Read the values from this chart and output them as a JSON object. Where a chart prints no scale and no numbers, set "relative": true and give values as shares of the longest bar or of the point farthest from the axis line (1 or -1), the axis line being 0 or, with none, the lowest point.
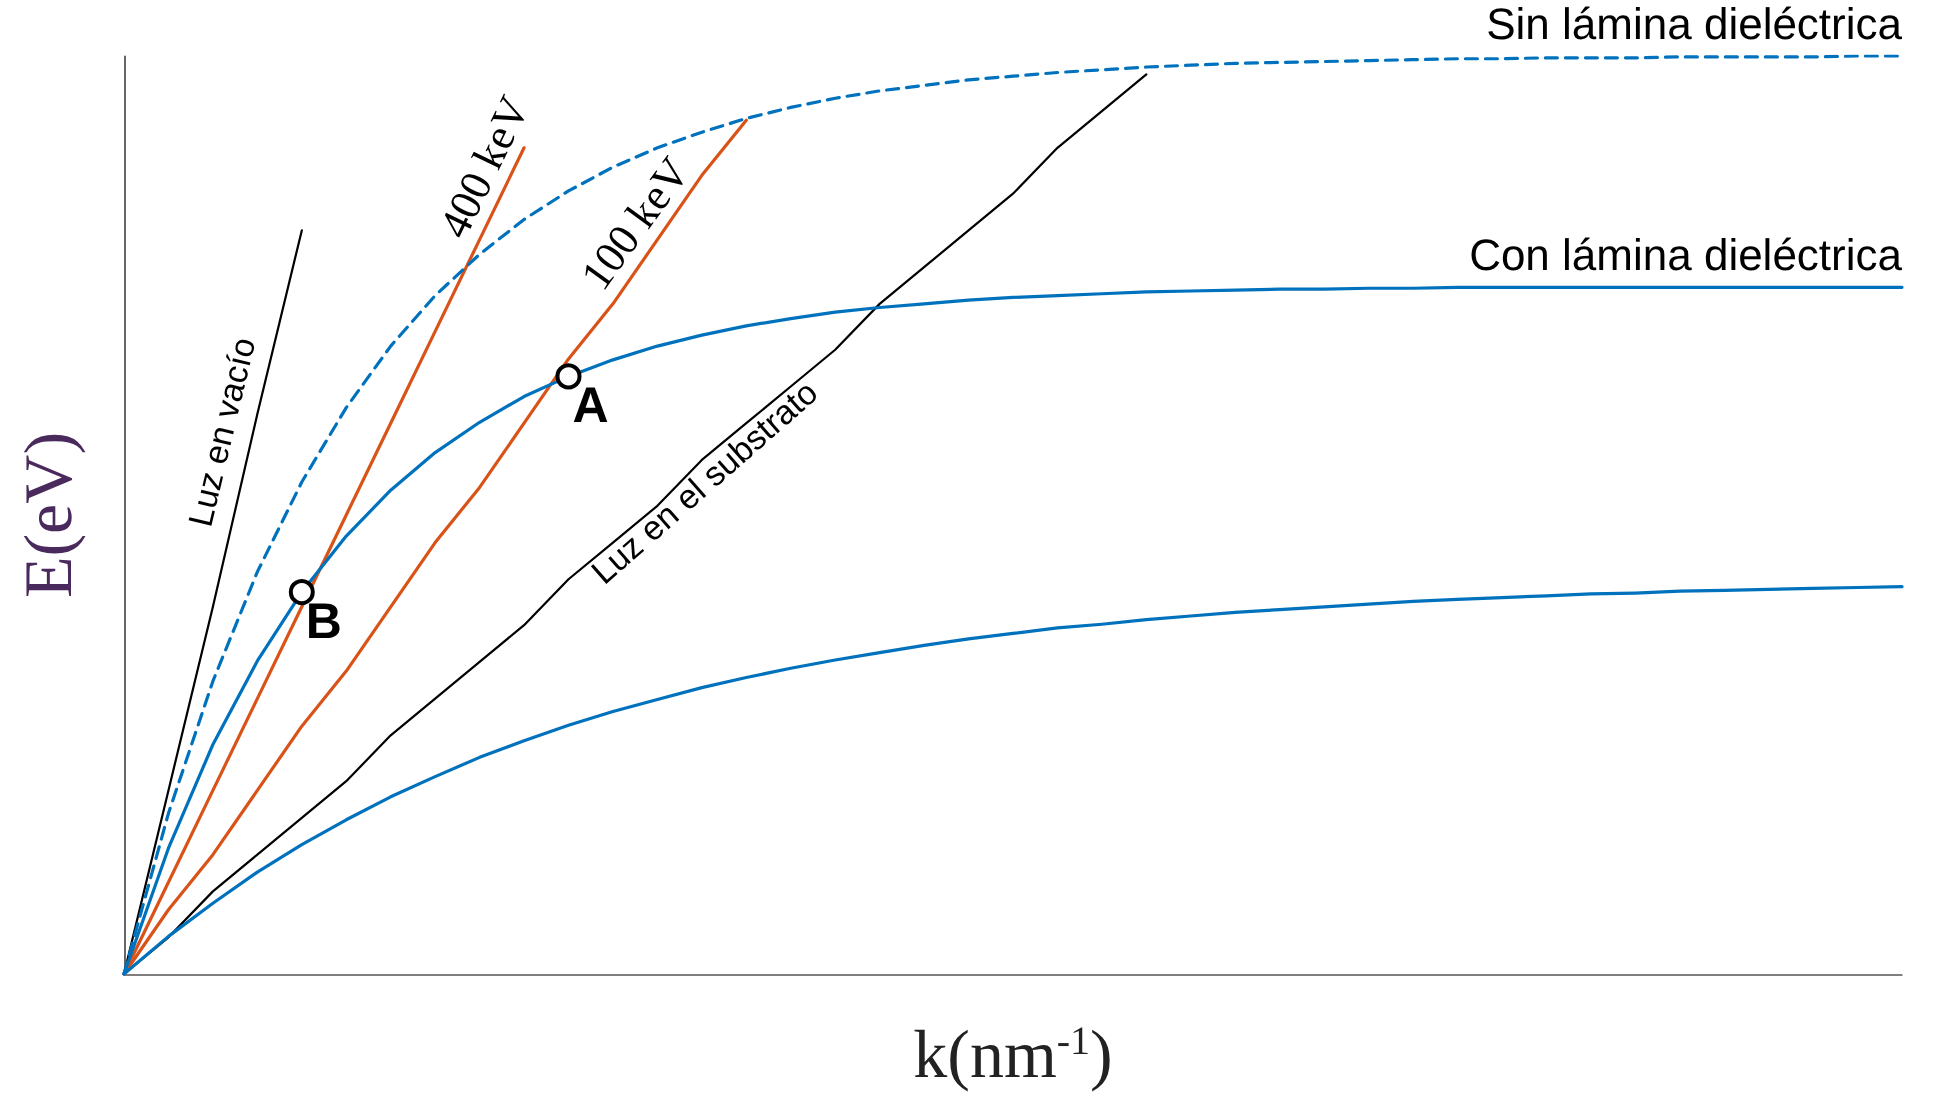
{
  "chart_data": {
    "type": "line",
    "relative": true,
    "xlabel": "k(nm$^{-1}$)",
    "ylabel": "E(eV)",
    "grid": false,
    "legend": false,
    "marker": "none",
    "categories": [
      null,
      null,
      null,
      null,
      null,
      null,
      null,
      null,
      null,
      null,
      null,
      null,
      null,
      null,
      null,
      null,
      null,
      null,
      null,
      null,
      null,
      null,
      null,
      null,
      null,
      null,
      null,
      null,
      null,
      null,
      null,
      null,
      null,
      null,
      null,
      null,
      null,
      null,
      null,
      null,
      null
    ],
    "annotations": [
      {
        "text": "A",
        "y": 0.651
      },
      "B"
    ],
    "series": [
      {
        "name": "Luz en vacío",
        "color": "#000000",
        "line_style": "solid",
        "values": [
          0,
          0.2,
          0.4,
          0.61,
          0.81,
          null,
          null,
          null,
          null,
          null,
          null,
          null,
          null,
          null,
          null,
          null,
          null,
          null,
          null,
          null,
          null,
          null,
          null,
          null,
          null,
          null,
          null,
          null,
          null,
          null,
          null,
          null,
          null,
          null,
          null,
          null,
          null,
          null,
          null,
          null,
          null
        ]
      },
      {
        "name": "400 keV",
        "color": "#d95319",
        "line_style": "solid",
        "values": [
          0,
          0.1,
          0.2,
          0.3,
          0.4,
          0.5,
          0.6,
          0.7,
          0.8,
          0.9,
          null,
          null,
          null,
          null,
          null,
          null,
          null,
          null,
          null,
          null,
          null,
          null,
          null,
          null,
          null,
          null,
          null,
          null,
          null,
          null,
          null,
          null,
          null,
          null,
          null,
          null,
          null,
          null,
          null,
          null,
          null
        ]
      },
      {
        "name": "100 keV",
        "color": "#d95319",
        "line_style": "solid",
        "values": [
          0,
          0.07,
          0.13,
          0.2,
          0.27,
          0.33,
          0.4,
          0.47,
          0.53,
          0.6,
          0.67,
          0.73,
          0.8,
          0.87,
          0.93,
          null,
          null,
          null,
          null,
          null,
          null,
          null,
          null,
          null,
          null,
          null,
          null,
          null,
          null,
          null,
          null,
          null,
          null,
          null,
          null,
          null,
          null,
          null,
          null,
          null,
          null
        ]
      },
      {
        "name": "Luz en el substrato",
        "color": "#000000",
        "line_style": "solid",
        "values": [
          0,
          0.04,
          0.09,
          0.13,
          0.17,
          0.21,
          0.26,
          0.3,
          0.34,
          0.38,
          0.43,
          0.47,
          0.51,
          0.56,
          0.6,
          0.64,
          0.68,
          0.73,
          0.77,
          0.81,
          0.85,
          0.9,
          0.94,
          0.98,
          null,
          null,
          null,
          null,
          null,
          null,
          null,
          null,
          null,
          null,
          null,
          null,
          null,
          null,
          null,
          null,
          null
        ]
      },
      {
        "name": "Sin lámina dieléctrica",
        "color": "#0072bd",
        "line_style": "dashed",
        "values": [
          0,
          0.175,
          0.319,
          0.438,
          0.536,
          0.617,
          0.684,
          0.739,
          0.784,
          0.822,
          0.853,
          0.879,
          0.9,
          0.917,
          0.932,
          0.944,
          0.954,
          0.962,
          0.968,
          0.974,
          0.978,
          0.982,
          0.985,
          0.988,
          0.99,
          0.992,
          0.993,
          0.994,
          0.995,
          0.996,
          0.997,
          0.997,
          0.998,
          0.998,
          0.998,
          0.999,
          0.999,
          0.999,
          0.999,
          1,
          1
        ]
      },
      {
        "name": "Con lámina dieléctrica",
        "color": "#0072bd",
        "line_style": "solid",
        "values": [
          0,
          0.137,
          0.25,
          0.341,
          0.416,
          0.477,
          0.527,
          0.568,
          0.601,
          0.629,
          0.651,
          0.669,
          0.684,
          0.696,
          0.706,
          0.714,
          0.721,
          0.726,
          0.73,
          0.734,
          0.737,
          0.739,
          0.741,
          0.743,
          0.744,
          0.745,
          0.746,
          0.746,
          0.747,
          0.747,
          0.748,
          0.748,
          0.748,
          0.748,
          0.748,
          0.748,
          0.748,
          0.748,
          0.748,
          0.748,
          0.748
        ]
      },
      {
        "color": "#0072bd",
        "line_style": "solid",
        "values": [
          0,
          0.041,
          0.077,
          0.111,
          0.141,
          0.168,
          0.193,
          0.215,
          0.236,
          0.254,
          0.271,
          0.286,
          0.299,
          0.312,
          0.323,
          0.333,
          0.342,
          0.35,
          0.358,
          0.365,
          0.371,
          0.377,
          0.381,
          0.386,
          0.39,
          0.394,
          0.397,
          0.4,
          0.403,
          0.406,
          0.408,
          0.41,
          0.412,
          0.414,
          0.415,
          0.417,
          0.418,
          0.419,
          0.42,
          0.421,
          0.422
        ]
      }
    ]
  }
}
